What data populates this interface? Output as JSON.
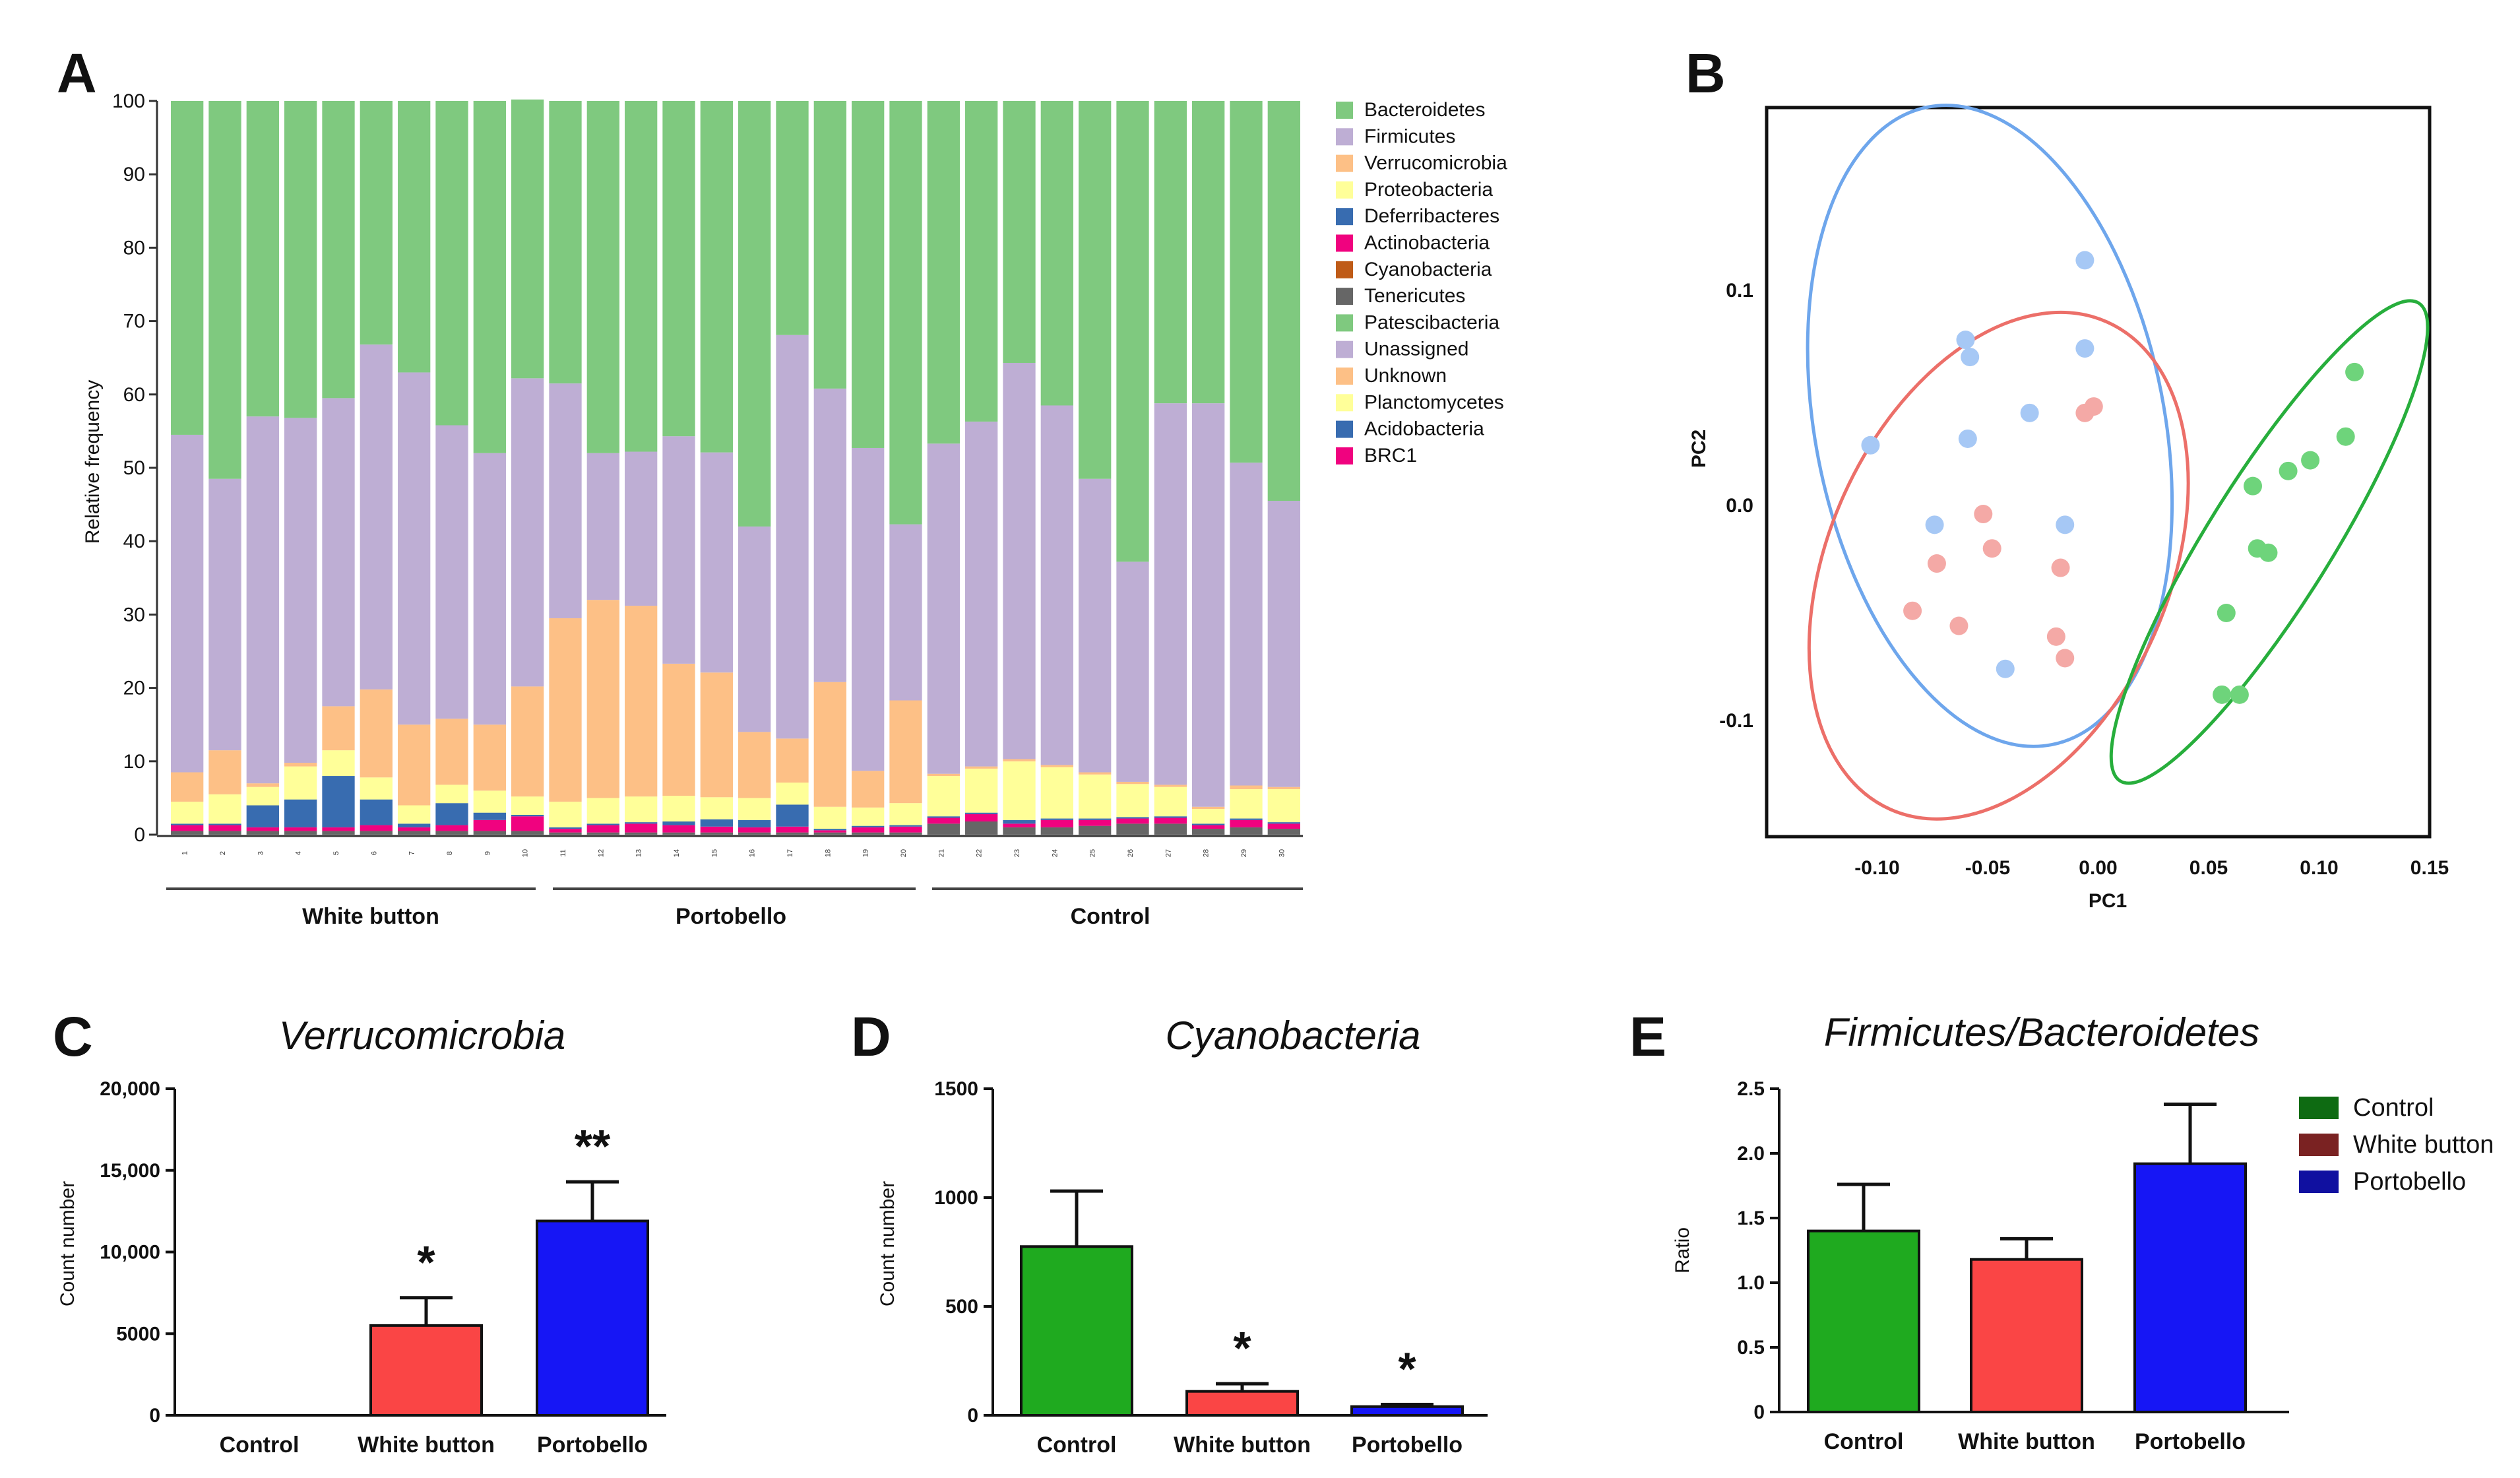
{
  "panels": {
    "A": {
      "letter": "A"
    },
    "B": {
      "letter": "B"
    },
    "C": {
      "letter": "C"
    },
    "D": {
      "letter": "D"
    },
    "E": {
      "letter": "E"
    }
  },
  "chart_data": [
    {
      "id": "A",
      "type": "bar",
      "stacked": true,
      "ylabel": "Relative frequency",
      "ylim": [
        0,
        100
      ],
      "yticks": [
        0,
        10,
        20,
        30,
        40,
        50,
        60,
        70,
        80,
        90,
        100
      ],
      "groups": [
        "White button",
        "Portobello",
        "Control"
      ],
      "categories": [
        "1",
        "2",
        "3",
        "4",
        "5",
        "6",
        "7",
        "8",
        "9",
        "10",
        "11",
        "12",
        "13",
        "14",
        "15",
        "16",
        "17",
        "18",
        "19",
        "20",
        "21",
        "22",
        "23",
        "24",
        "25",
        "26",
        "27",
        "28",
        "29",
        "30"
      ],
      "legend": [
        {
          "name": "Bacteroidetes",
          "color": "#7fc97f"
        },
        {
          "name": "Firmicutes",
          "color": "#beaed4"
        },
        {
          "name": "Verrucomicrobia",
          "color": "#fdc086"
        },
        {
          "name": "Proteobacteria",
          "color": "#ffff99"
        },
        {
          "name": "Deferribacteres",
          "color": "#386cb0"
        },
        {
          "name": "Actinobacteria",
          "color": "#f0027f"
        },
        {
          "name": "Cyanobacteria",
          "color": "#bf5b17"
        },
        {
          "name": "Tenericutes",
          "color": "#666666"
        },
        {
          "name": "Patescibacteria",
          "color": "#7fc97f"
        },
        {
          "name": "Unassigned",
          "color": "#beaed4"
        },
        {
          "name": "Unknown",
          "color": "#fdc086"
        },
        {
          "name": "Planctomycetes",
          "color": "#ffff99"
        },
        {
          "name": "Acidobacteria",
          "color": "#386cb0"
        },
        {
          "name": "BRC1",
          "color": "#f0027f"
        }
      ],
      "stack_order": [
        "Tenericutes",
        "Actinobacteria",
        "Deferribacteres",
        "Proteobacteria",
        "Verrucomicrobia",
        "Firmicutes",
        "Bacteroidetes"
      ],
      "stack_colors": [
        "#666666",
        "#f0027f",
        "#386cb0",
        "#ffff99",
        "#fdc086",
        "#beaed4",
        "#7fc97f"
      ],
      "series": [
        {
          "name": "Tenericutes",
          "values": [
            0.5,
            0.5,
            0.5,
            0.5,
            0.5,
            0.5,
            0.5,
            0.5,
            0.5,
            0.5,
            0.3,
            0.3,
            0.3,
            0.3,
            0.3,
            0.3,
            0.3,
            0.3,
            0.3,
            0.3,
            1.5,
            1.8,
            1.0,
            1.0,
            1.2,
            1.5,
            1.5,
            0.8,
            1.0,
            0.8
          ]
        },
        {
          "name": "Actinobacteria",
          "values": [
            0.8,
            0.8,
            0.5,
            0.5,
            0.5,
            0.8,
            0.5,
            0.8,
            1.5,
            2.0,
            0.5,
            1.0,
            1.2,
            1.0,
            0.8,
            0.7,
            0.8,
            0.3,
            0.7,
            0.8,
            0.8,
            1.0,
            0.5,
            1.0,
            0.8,
            0.7,
            0.8,
            0.5,
            1.0,
            0.7
          ]
        },
        {
          "name": "Deferribacteres",
          "values": [
            0.2,
            0.2,
            3.0,
            3.8,
            7.0,
            3.5,
            0.5,
            3.0,
            1.0,
            0.2,
            0.2,
            0.2,
            0.2,
            0.5,
            1.0,
            1.0,
            3.0,
            0.2,
            0.2,
            0.2,
            0.2,
            0.2,
            0.5,
            0.2,
            0.2,
            0.2,
            0.2,
            0.2,
            0.2,
            0.2
          ]
        },
        {
          "name": "Proteobacteria",
          "values": [
            3.0,
            4.0,
            2.5,
            4.5,
            3.5,
            3.0,
            2.5,
            2.5,
            3.0,
            2.5,
            3.5,
            3.5,
            3.5,
            3.5,
            3.0,
            3.0,
            3.0,
            3.0,
            2.5,
            3.0,
            5.5,
            6.0,
            8.0,
            7.0,
            6.0,
            4.5,
            4.0,
            2.0,
            4.0,
            4.5
          ]
        },
        {
          "name": "Verrucomicrobia",
          "values": [
            4.0,
            6.0,
            0.5,
            0.5,
            6.0,
            12.0,
            11.0,
            9.0,
            9.0,
            15.0,
            25.0,
            27.0,
            26.0,
            18.0,
            17.0,
            9.0,
            6.0,
            17.0,
            5.0,
            14.0,
            0.3,
            0.3,
            0.3,
            0.3,
            0.3,
            0.3,
            0.3,
            0.3,
            0.5,
            0.3
          ]
        },
        {
          "name": "Firmicutes",
          "values": [
            46.0,
            37.0,
            50.0,
            47.0,
            42.0,
            47.0,
            48.0,
            40.0,
            37.0,
            42.0,
            32.0,
            20.0,
            21.0,
            31.0,
            30.0,
            28.0,
            55.0,
            40.0,
            44.0,
            24.0,
            45.0,
            47.0,
            54.0,
            49.0,
            40.0,
            30.0,
            52.0,
            55.0,
            44.0,
            39.0
          ]
        },
        {
          "name": "Bacteroidetes",
          "values": [
            45.5,
            51.5,
            43.0,
            43.2,
            40.5,
            33.2,
            37.0,
            44.2,
            48.0,
            38.0,
            38.5,
            48.0,
            47.8,
            45.7,
            47.9,
            58.0,
            31.9,
            39.2,
            47.3,
            57.7,
            46.7,
            43.7,
            35.7,
            41.5,
            51.5,
            62.8,
            41.2,
            41.2,
            49.3,
            54.5
          ]
        }
      ]
    },
    {
      "id": "B",
      "type": "scatter",
      "xlabel": "PC1",
      "ylabel": "PC2",
      "xlim": [
        -0.15,
        0.15
      ],
      "ylim": [
        -0.154,
        0.185
      ],
      "xticks": [
        -0.1,
        -0.05,
        0.0,
        0.05,
        0.1,
        0.15
      ],
      "xtick_labels": [
        "-0.10",
        "-0.05",
        "0.00",
        "0.05",
        "0.10",
        "0.15"
      ],
      "yticks": [
        0.1,
        0.0,
        -0.1
      ],
      "ytick_labels": [
        "0.1",
        "0.0",
        "-0.1"
      ],
      "series": [
        {
          "name": "blue",
          "color": "#a6c8f5",
          "ellipse_color": "#6ea6ec",
          "ellipse": {
            "cx": -0.049,
            "cy": 0.037,
            "rx": 0.079,
            "ry": 0.151,
            "rot": -11
          },
          "points": [
            [
              -0.103,
              0.028
            ],
            [
              -0.074,
              -0.009
            ],
            [
              -0.06,
              0.077
            ],
            [
              -0.058,
              0.069
            ],
            [
              -0.059,
              0.031
            ],
            [
              -0.042,
              -0.076
            ],
            [
              -0.031,
              0.043
            ],
            [
              -0.015,
              -0.009
            ],
            [
              -0.006,
              0.114
            ],
            [
              -0.006,
              0.073
            ]
          ]
        },
        {
          "name": "red",
          "color": "#f4a9a6",
          "ellipse_color": "#ec6f69",
          "ellipse": {
            "cx": -0.045,
            "cy": -0.028,
            "rx": 0.077,
            "ry": 0.124,
            "rot": 24
          },
          "points": [
            [
              -0.084,
              -0.049
            ],
            [
              -0.073,
              -0.027
            ],
            [
              -0.063,
              -0.056
            ],
            [
              -0.052,
              -0.004
            ],
            [
              -0.048,
              -0.02
            ],
            [
              -0.019,
              -0.061
            ],
            [
              -0.017,
              -0.029
            ],
            [
              -0.015,
              -0.071
            ],
            [
              -0.006,
              0.043
            ],
            [
              -0.002,
              0.046
            ]
          ]
        },
        {
          "name": "green",
          "color": "#6ed47b",
          "ellipse_color": "#27ae3c",
          "ellipse": {
            "cx": 0.0775,
            "cy": -0.017,
            "rx": 0.028,
            "ry": 0.131,
            "rot": 32
          },
          "points": [
            [
              0.056,
              -0.088
            ],
            [
              0.058,
              -0.05
            ],
            [
              0.064,
              -0.088
            ],
            [
              0.07,
              0.009
            ],
            [
              0.072,
              -0.02
            ],
            [
              0.077,
              -0.022
            ],
            [
              0.086,
              0.016
            ],
            [
              0.096,
              0.021
            ],
            [
              0.112,
              0.032
            ],
            [
              0.116,
              0.062
            ]
          ]
        }
      ]
    },
    {
      "id": "C",
      "type": "bar",
      "title": "Verrucomicrobia",
      "ylabel": "Count number",
      "ylim": [
        0,
        20000
      ],
      "yticks": [
        0,
        5000,
        10000,
        15000,
        20000
      ],
      "ytick_labels": [
        "0",
        "5000",
        "10,000",
        "15,000",
        "20,000"
      ],
      "categories": [
        "Control",
        "White button",
        "Portobello"
      ],
      "values": [
        0,
        5500,
        11900
      ],
      "errors": [
        0,
        1700,
        2400
      ],
      "colors": [
        "#1faa1f",
        "#fa4545",
        "#1616f5"
      ],
      "significance": [
        "",
        "*",
        "**"
      ]
    },
    {
      "id": "D",
      "type": "bar",
      "title": "Cyanobacteria",
      "ylabel": "Count number",
      "ylim": [
        0,
        1500
      ],
      "yticks": [
        0,
        500,
        1000,
        1500
      ],
      "ytick_labels": [
        "0",
        "500",
        "1000",
        "1500"
      ],
      "categories": [
        "Control",
        "White button",
        "Portobello"
      ],
      "values": [
        775,
        110,
        40
      ],
      "errors": [
        255,
        35,
        10
      ],
      "colors": [
        "#1faa1f",
        "#fa4545",
        "#1616f5"
      ],
      "significance": [
        "",
        "*",
        "*"
      ]
    },
    {
      "id": "E",
      "type": "bar",
      "title": "Firmicutes/Bacteroidetes",
      "ylabel": "Ratio",
      "ylim": [
        0,
        2.5
      ],
      "yticks": [
        0,
        0.5,
        1.0,
        1.5,
        2.0,
        2.5
      ],
      "ytick_labels": [
        "0",
        "0.5",
        "1.0",
        "1.5",
        "2.0",
        "2.5"
      ],
      "categories": [
        "Control",
        "White button",
        "Portobello"
      ],
      "values": [
        1.4,
        1.18,
        1.92
      ],
      "errors": [
        0.36,
        0.16,
        0.46
      ],
      "colors": [
        "#1faa1f",
        "#fa4545",
        "#1616f5"
      ],
      "legend": [
        {
          "name": "Control",
          "color": "#0e6b12"
        },
        {
          "name": "White button",
          "color": "#7a2222"
        },
        {
          "name": "Portobello",
          "color": "#1010a0"
        }
      ]
    }
  ]
}
